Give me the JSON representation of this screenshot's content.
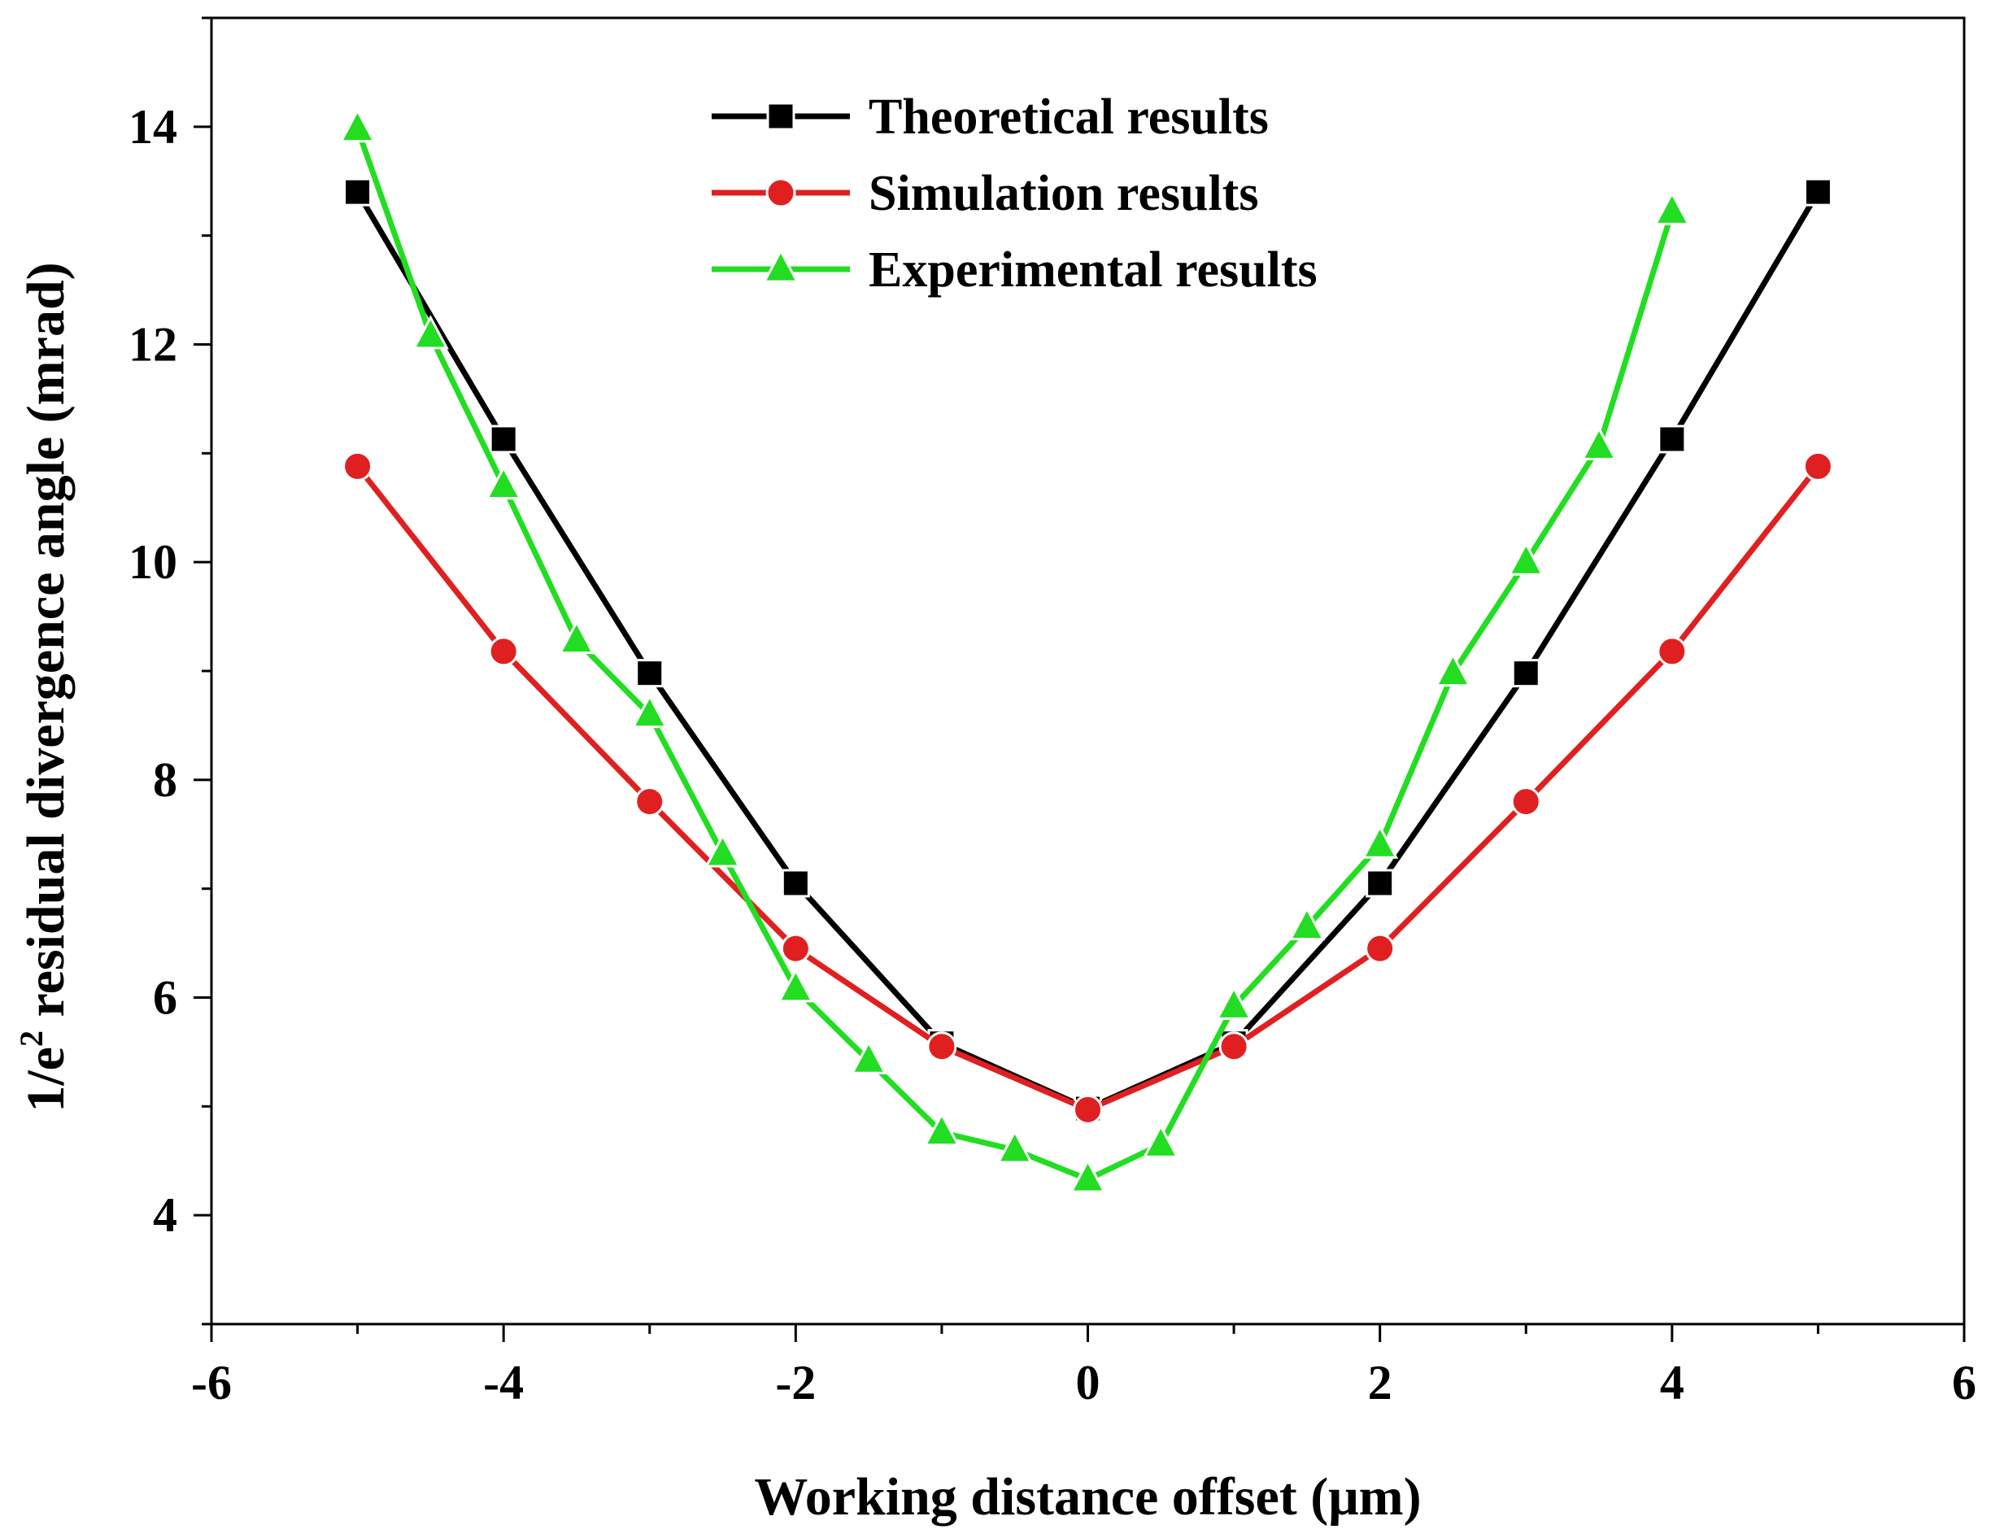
{
  "chart_data": {
    "type": "line",
    "title": "",
    "xlabel": "Working distance offset (μm)",
    "ylabel_prefix": "1/e",
    "ylabel_superscript": "2",
    "ylabel_suffix": " residual divergence angle (mrad)",
    "xlim": [
      -6,
      6
    ],
    "ylim": [
      3,
      15
    ],
    "xticks": [
      -6,
      -4,
      -2,
      0,
      2,
      4,
      6
    ],
    "yticks": [
      4,
      6,
      8,
      10,
      12,
      14
    ],
    "legend_position": "top-center",
    "grid": false,
    "series": [
      {
        "name": "Theoretical results",
        "color": "#000000",
        "marker": "square",
        "x": [
          -5,
          -4,
          -3,
          -2,
          -1,
          0,
          1,
          2,
          3,
          4,
          5
        ],
        "y": [
          13.4,
          11.13,
          8.98,
          7.05,
          5.58,
          4.98,
          5.58,
          7.05,
          8.98,
          11.13,
          13.4
        ]
      },
      {
        "name": "Simulation results",
        "color": "#e02020",
        "marker": "circle",
        "x": [
          -5,
          -4,
          -3,
          -2,
          -1,
          0,
          1,
          2,
          3,
          4,
          5
        ],
        "y": [
          10.88,
          9.18,
          7.8,
          6.45,
          5.55,
          4.97,
          5.55,
          6.45,
          7.8,
          9.18,
          10.88
        ]
      },
      {
        "name": "Experimental results",
        "color": "#22dd22",
        "marker": "triangle",
        "x": [
          -5,
          -4.5,
          -4,
          -3.5,
          -3,
          -2.5,
          -2,
          -1.5,
          -1,
          -0.5,
          0,
          0.5,
          1,
          1.5,
          2,
          2.5,
          3,
          3.5,
          4
        ],
        "y": [
          13.98,
          12.08,
          10.7,
          9.28,
          8.6,
          7.32,
          6.08,
          5.42,
          4.76,
          4.6,
          4.33,
          4.65,
          5.92,
          6.65,
          7.4,
          8.98,
          10.0,
          11.06,
          13.22
        ]
      }
    ]
  }
}
